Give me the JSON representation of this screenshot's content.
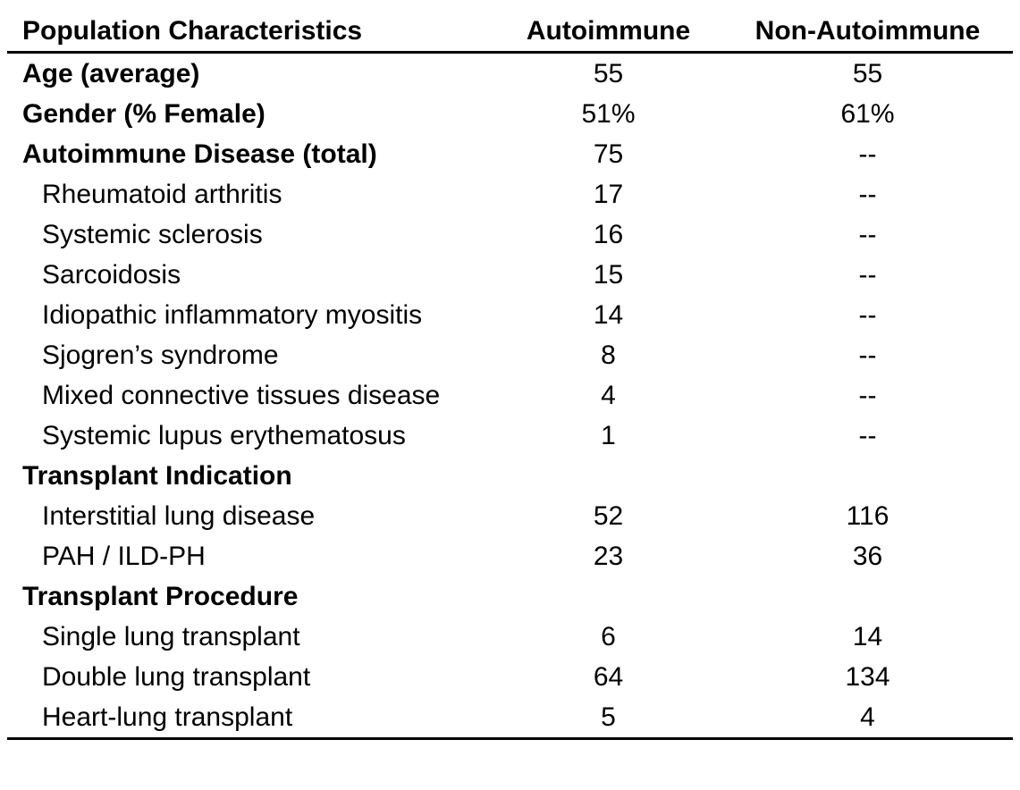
{
  "table": {
    "columns": [
      "Population Characteristics",
      "Autoimmune",
      "Non-Autoimmune"
    ],
    "rows": [
      {
        "label": "Age (average)",
        "style": "bold",
        "autoimmune": "55",
        "non_autoimmune": "55"
      },
      {
        "label": "Gender (% Female)",
        "style": "bold",
        "autoimmune": "51%",
        "non_autoimmune": "61%"
      },
      {
        "label": "Autoimmune Disease (total)",
        "style": "bold",
        "autoimmune": "75",
        "non_autoimmune": "--"
      },
      {
        "label": "Rheumatoid arthritis",
        "style": "indent",
        "autoimmune": "17",
        "non_autoimmune": "--"
      },
      {
        "label": "Systemic sclerosis",
        "style": "indent",
        "autoimmune": "16",
        "non_autoimmune": "--"
      },
      {
        "label": "Sarcoidosis",
        "style": "indent",
        "autoimmune": "15",
        "non_autoimmune": "--"
      },
      {
        "label": "Idiopathic inflammatory myositis",
        "style": "indent",
        "autoimmune": "14",
        "non_autoimmune": "--"
      },
      {
        "label": "Sjogren’s syndrome",
        "style": "indent",
        "autoimmune": "8",
        "non_autoimmune": "--"
      },
      {
        "label": "Mixed connective tissues disease",
        "style": "indent",
        "autoimmune": "4",
        "non_autoimmune": "--"
      },
      {
        "label": "Systemic lupus erythematosus",
        "style": "indent",
        "autoimmune": "1",
        "non_autoimmune": "--"
      },
      {
        "label": "Transplant Indication",
        "style": "bold",
        "autoimmune": "",
        "non_autoimmune": ""
      },
      {
        "label": "Interstitial lung disease",
        "style": "indent",
        "autoimmune": "52",
        "non_autoimmune": "116"
      },
      {
        "label": "PAH / ILD-PH",
        "style": "indent",
        "autoimmune": "23",
        "non_autoimmune": "36"
      },
      {
        "label": "Transplant Procedure",
        "style": "bold",
        "autoimmune": "",
        "non_autoimmune": ""
      },
      {
        "label": "Single lung transplant",
        "style": "indent",
        "autoimmune": "6",
        "non_autoimmune": "14"
      },
      {
        "label": "Double lung transplant",
        "style": "indent",
        "autoimmune": "64",
        "non_autoimmune": "134"
      },
      {
        "label": "Heart-lung transplant",
        "style": "indent",
        "autoimmune": "5",
        "non_autoimmune": "4"
      }
    ]
  },
  "colors": {
    "text": "#000000",
    "background": "#ffffff",
    "rule": "#000000"
  },
  "chart_data": {
    "type": "table",
    "title": "Population Characteristics",
    "columns": [
      "Population Characteristics",
      "Autoimmune",
      "Non-Autoimmune"
    ],
    "rows": [
      [
        "Age (average)",
        "55",
        "55"
      ],
      [
        "Gender (% Female)",
        "51%",
        "61%"
      ],
      [
        "Autoimmune Disease (total)",
        "75",
        "--"
      ],
      [
        "Rheumatoid arthritis",
        "17",
        "--"
      ],
      [
        "Systemic sclerosis",
        "16",
        "--"
      ],
      [
        "Sarcoidosis",
        "15",
        "--"
      ],
      [
        "Idiopathic inflammatory myositis",
        "14",
        "--"
      ],
      [
        "Sjogren’s syndrome",
        "8",
        "--"
      ],
      [
        "Mixed connective tissues disease",
        "4",
        "--"
      ],
      [
        "Systemic lupus erythematosus",
        "1",
        "--"
      ],
      [
        "Transplant Indication",
        "",
        ""
      ],
      [
        "Interstitial lung disease",
        "52",
        "116"
      ],
      [
        "PAH / ILD-PH",
        "23",
        "36"
      ],
      [
        "Transplant Procedure",
        "",
        ""
      ],
      [
        "Single lung transplant",
        "6",
        "14"
      ],
      [
        "Double lung transplant",
        "64",
        "134"
      ],
      [
        "Heart-lung transplant",
        "5",
        "4"
      ]
    ]
  }
}
